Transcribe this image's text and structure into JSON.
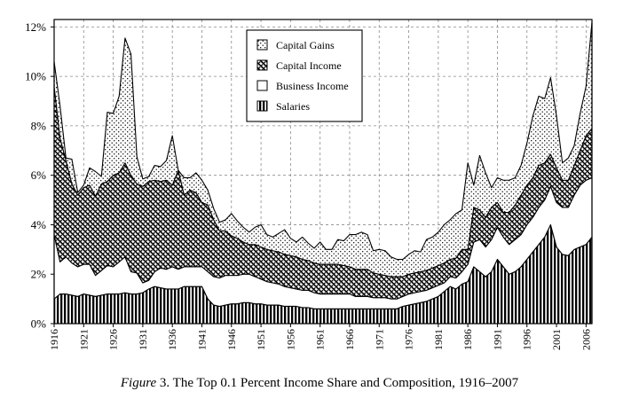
{
  "caption": {
    "label": "Figure",
    "text": "3. The Top 0.1 Percent Income Share and Composition, 1916–2007"
  },
  "chart_data": {
    "type": "area",
    "stacked": true,
    "x_range": [
      1916,
      2007
    ],
    "ylim": [
      0,
      12.3
    ],
    "y_ticks": [
      0,
      2,
      4,
      6,
      8,
      10,
      12
    ],
    "y_tick_labels": [
      "0%",
      "2%",
      "4%",
      "6%",
      "8%",
      "10%",
      "12%"
    ],
    "x_ticks": [
      1916,
      1921,
      1926,
      1931,
      1936,
      1941,
      1946,
      1951,
      1956,
      1961,
      1966,
      1971,
      1976,
      1981,
      1986,
      1991,
      1996,
      2001,
      2006
    ],
    "grid": true,
    "legend_position": "top-center",
    "legend": [
      "Capital Gains",
      "Capital Income",
      "Business Income",
      "Salaries"
    ],
    "x": [
      1916,
      1917,
      1918,
      1919,
      1920,
      1921,
      1922,
      1923,
      1924,
      1925,
      1926,
      1927,
      1928,
      1929,
      1930,
      1931,
      1932,
      1933,
      1934,
      1935,
      1936,
      1937,
      1938,
      1939,
      1940,
      1941,
      1942,
      1943,
      1944,
      1945,
      1946,
      1947,
      1948,
      1949,
      1950,
      1951,
      1952,
      1953,
      1954,
      1955,
      1956,
      1957,
      1958,
      1959,
      1960,
      1961,
      1962,
      1963,
      1964,
      1965,
      1966,
      1967,
      1968,
      1969,
      1970,
      1971,
      1972,
      1973,
      1974,
      1975,
      1976,
      1977,
      1978,
      1979,
      1980,
      1981,
      1982,
      1983,
      1984,
      1985,
      1986,
      1987,
      1988,
      1989,
      1990,
      1991,
      1992,
      1993,
      1994,
      1995,
      1996,
      1997,
      1998,
      1999,
      2000,
      2001,
      2002,
      2003,
      2004,
      2005,
      2006,
      2007
    ],
    "series": [
      {
        "name": "Salaries",
        "pattern": "vertical-stripes",
        "values": [
          1.0,
          1.2,
          1.2,
          1.15,
          1.1,
          1.2,
          1.15,
          1.1,
          1.15,
          1.2,
          1.2,
          1.2,
          1.25,
          1.2,
          1.2,
          1.25,
          1.4,
          1.5,
          1.45,
          1.4,
          1.4,
          1.4,
          1.5,
          1.5,
          1.5,
          1.5,
          1.0,
          0.75,
          0.7,
          0.75,
          0.8,
          0.8,
          0.85,
          0.85,
          0.8,
          0.8,
          0.75,
          0.75,
          0.75,
          0.7,
          0.7,
          0.7,
          0.65,
          0.65,
          0.6,
          0.6,
          0.6,
          0.6,
          0.6,
          0.6,
          0.6,
          0.6,
          0.6,
          0.6,
          0.6,
          0.6,
          0.6,
          0.6,
          0.6,
          0.7,
          0.75,
          0.8,
          0.85,
          0.9,
          1.0,
          1.1,
          1.3,
          1.5,
          1.4,
          1.6,
          1.7,
          2.3,
          2.1,
          1.9,
          2.1,
          2.6,
          2.3,
          2.0,
          2.1,
          2.3,
          2.6,
          2.9,
          3.2,
          3.5,
          4.0,
          3.1,
          2.8,
          2.75,
          3.0,
          3.1,
          3.2,
          3.5
        ]
      },
      {
        "name": "Business Income",
        "pattern": "white",
        "values": [
          2.6,
          1.3,
          1.5,
          1.3,
          1.2,
          1.2,
          1.25,
          0.85,
          1.0,
          1.15,
          1.1,
          1.3,
          1.45,
          0.9,
          0.85,
          0.4,
          0.35,
          0.6,
          0.8,
          0.8,
          0.9,
          0.8,
          0.8,
          0.8,
          0.8,
          0.8,
          1.1,
          1.15,
          1.15,
          1.2,
          1.15,
          1.15,
          1.15,
          1.15,
          1.1,
          1.0,
          0.95,
          0.9,
          0.85,
          0.8,
          0.75,
          0.7,
          0.7,
          0.7,
          0.65,
          0.6,
          0.6,
          0.6,
          0.6,
          0.6,
          0.6,
          0.5,
          0.5,
          0.5,
          0.45,
          0.45,
          0.45,
          0.4,
          0.4,
          0.4,
          0.45,
          0.45,
          0.45,
          0.45,
          0.45,
          0.45,
          0.35,
          0.4,
          0.45,
          0.5,
          0.7,
          1.0,
          1.3,
          1.2,
          1.3,
          1.3,
          1.2,
          1.2,
          1.3,
          1.3,
          1.4,
          1.4,
          1.5,
          1.5,
          1.55,
          1.8,
          1.9,
          1.95,
          2.2,
          2.5,
          2.6,
          2.4
        ]
      },
      {
        "name": "Capital Income",
        "pattern": "diagonal-hatch",
        "values": [
          6.0,
          5.0,
          3.9,
          3.2,
          2.9,
          3.1,
          3.2,
          3.2,
          3.5,
          3.4,
          3.7,
          3.6,
          3.8,
          3.9,
          3.6,
          3.9,
          4.0,
          3.7,
          3.5,
          3.6,
          3.3,
          4.0,
          2.9,
          3.1,
          3.0,
          2.6,
          2.7,
          2.3,
          1.9,
          1.8,
          1.6,
          1.5,
          1.3,
          1.2,
          1.3,
          1.3,
          1.3,
          1.3,
          1.3,
          1.3,
          1.3,
          1.3,
          1.25,
          1.2,
          1.2,
          1.2,
          1.2,
          1.2,
          1.2,
          1.15,
          1.1,
          1.1,
          1.1,
          1.1,
          1.0,
          0.95,
          0.9,
          0.9,
          0.9,
          0.8,
          0.8,
          0.8,
          0.8,
          0.8,
          0.8,
          0.8,
          0.8,
          0.7,
          0.8,
          0.9,
          0.6,
          1.4,
          1.2,
          1.2,
          1.3,
          1.0,
          1.0,
          1.3,
          1.4,
          1.6,
          1.6,
          1.6,
          1.7,
          1.5,
          1.3,
          1.4,
          1.1,
          1.1,
          1.2,
          1.4,
          1.8,
          2.0
        ]
      },
      {
        "name": "Capital Gains",
        "pattern": "dots",
        "values": [
          1.0,
          1.3,
          0.1,
          1.0,
          0.1,
          0.1,
          0.7,
          1.0,
          0.3,
          2.8,
          2.5,
          3.1,
          5.05,
          4.9,
          1.1,
          0.3,
          0.2,
          0.6,
          0.6,
          0.8,
          2.0,
          0.0,
          0.7,
          0.5,
          0.8,
          0.9,
          0.6,
          0.45,
          0.35,
          0.45,
          0.9,
          0.7,
          0.6,
          0.5,
          0.7,
          0.9,
          0.6,
          0.55,
          0.75,
          1.0,
          0.7,
          0.6,
          0.9,
          0.7,
          0.6,
          0.9,
          0.6,
          0.6,
          1.0,
          1.0,
          1.3,
          1.4,
          1.5,
          1.4,
          0.9,
          1.0,
          1.0,
          0.8,
          0.7,
          0.7,
          0.8,
          0.9,
          0.8,
          1.25,
          1.25,
          1.35,
          1.55,
          1.6,
          1.8,
          1.6,
          3.5,
          0.9,
          2.2,
          1.8,
          0.8,
          1.0,
          1.3,
          1.3,
          1.1,
          1.2,
          1.7,
          2.5,
          2.8,
          2.6,
          3.1,
          2.1,
          0.7,
          0.9,
          0.8,
          1.5,
          2.0,
          4.3
        ]
      }
    ]
  }
}
